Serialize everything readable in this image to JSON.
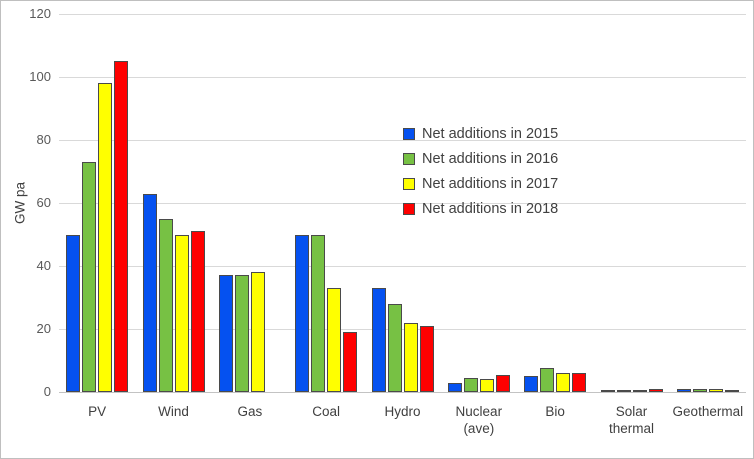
{
  "figure": {
    "background": "#FFFFFF",
    "border_color": "#BFBFBF"
  },
  "chart_data": {
    "type": "bar",
    "title": "",
    "xlabel": "",
    "ylabel": "GW pa",
    "ylim": [
      0,
      120
    ],
    "yticks": [
      0,
      20,
      40,
      60,
      80,
      100,
      120
    ],
    "grid": true,
    "legend_position": "overlay-center-right",
    "categories": [
      [
        "PV"
      ],
      [
        "Wind"
      ],
      [
        "Gas"
      ],
      [
        "Coal"
      ],
      [
        "Hydro"
      ],
      [
        "Nuclear",
        "(ave)"
      ],
      [
        "Bio"
      ],
      [
        "Solar",
        "thermal"
      ],
      [
        "Geothermal"
      ]
    ],
    "series": [
      {
        "name": "Net additions in 2015",
        "color": "#0551F0",
        "values": [
          50,
          63,
          37,
          50,
          33,
          3,
          5,
          0.5,
          1
        ]
      },
      {
        "name": "Net additions in 2016",
        "color": "#77C144",
        "values": [
          73,
          55,
          37,
          50,
          28,
          4.5,
          7.5,
          0.5,
          1
        ]
      },
      {
        "name": "Net additions in 2017",
        "color": "#FFFF00",
        "values": [
          98,
          50,
          38,
          33,
          22,
          4,
          6,
          0.5,
          1
        ]
      },
      {
        "name": "Net additions in 2018",
        "color": "#FE0000",
        "values": [
          105,
          51,
          null,
          19,
          21,
          5.5,
          6,
          1,
          0.5
        ]
      }
    ],
    "bar_border_color": "#4A4A4A",
    "gridline_color": "#D9D9D9",
    "axis_line_color": "#C3C3C3",
    "tick_label_color": "#595959",
    "category_label_color": "#404040",
    "legend_text_color": "#404040"
  }
}
